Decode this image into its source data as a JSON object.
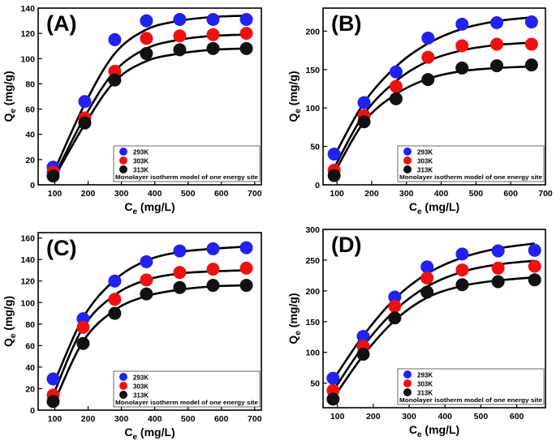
{
  "figure": {
    "series_names": [
      "293K",
      "303K",
      "313K"
    ],
    "series_colors": [
      "#2222ee",
      "#ee1111",
      "#111111"
    ],
    "model_label": "Monolayer isotherm model of one energy site",
    "x_label_main": "C",
    "x_label_sub": "e",
    "x_label_unit": " (mg/L)",
    "y_label_main": "Q",
    "y_label_sub": "e",
    "y_label_unit": " (mg/g)"
  },
  "chart_data": [
    {
      "type": "scatter",
      "panel_label": "(A)",
      "xlim": [
        50,
        720
      ],
      "ylim": [
        0,
        140
      ],
      "xticks": [
        100,
        200,
        300,
        400,
        500,
        600,
        700
      ],
      "yticks": [
        0,
        20,
        40,
        60,
        80,
        100,
        120,
        140
      ],
      "legend": "bottom-right",
      "series": [
        {
          "name": "293K",
          "x": [
            95,
            190,
            280,
            375,
            475,
            575,
            675
          ],
          "y": [
            14,
            66,
            115,
            130,
            131,
            131,
            131
          ],
          "fit": [
            [
              95,
              9
            ],
            [
              190,
              64
            ],
            [
              280,
              104
            ],
            [
              375,
              123
            ],
            [
              475,
              130
            ],
            [
              575,
              133
            ],
            [
              675,
              134
            ]
          ]
        },
        {
          "name": "303K",
          "x": [
            95,
            190,
            280,
            375,
            475,
            575,
            675
          ],
          "y": [
            10,
            53,
            90,
            116,
            118,
            119,
            120
          ],
          "fit": [
            [
              95,
              5
            ],
            [
              190,
              54
            ],
            [
              280,
              90
            ],
            [
              375,
              108
            ],
            [
              475,
              115
            ],
            [
              575,
              118
            ],
            [
              675,
              119
            ]
          ]
        },
        {
          "name": "313K",
          "x": [
            95,
            190,
            280,
            375,
            475,
            575,
            675
          ],
          "y": [
            7,
            49,
            83,
            104,
            107,
            108,
            108
          ],
          "fit": [
            [
              95,
              4
            ],
            [
              190,
              48
            ],
            [
              280,
              82
            ],
            [
              375,
              98
            ],
            [
              475,
              104
            ],
            [
              575,
              107
            ],
            [
              675,
              108
            ]
          ]
        }
      ]
    },
    {
      "type": "scatter",
      "panel_label": "(B)",
      "xlim": [
        60,
        700
      ],
      "ylim": [
        0,
        230
      ],
      "xticks": [
        100,
        200,
        300,
        400,
        500,
        600,
        700
      ],
      "yticks": [
        0,
        50,
        100,
        150,
        200
      ],
      "legend": "bottom-right",
      "series": [
        {
          "name": "293K",
          "x": [
            92,
            178,
            270,
            362,
            460,
            560,
            660
          ],
          "y": [
            40,
            107,
            147,
            191,
            209,
            211,
            212
          ],
          "fit": [
            [
              92,
              37
            ],
            [
              178,
              107
            ],
            [
              270,
              154
            ],
            [
              362,
              184
            ],
            [
              460,
              203
            ],
            [
              560,
              213
            ],
            [
              660,
              218
            ]
          ]
        },
        {
          "name": "303K",
          "x": [
            92,
            178,
            270,
            362,
            460,
            560,
            660
          ],
          "y": [
            19,
            90,
            128,
            166,
            181,
            183,
            183
          ],
          "fit": [
            [
              92,
              22
            ],
            [
              178,
              92
            ],
            [
              270,
              135
            ],
            [
              362,
              161
            ],
            [
              460,
              175
            ],
            [
              560,
              182
            ],
            [
              660,
              185
            ]
          ]
        },
        {
          "name": "313K",
          "x": [
            92,
            178,
            270,
            362,
            460,
            560,
            660
          ],
          "y": [
            12,
            82,
            112,
            137,
            152,
            155,
            156
          ],
          "fit": [
            [
              92,
              15
            ],
            [
              178,
              82
            ],
            [
              270,
              118
            ],
            [
              362,
              138
            ],
            [
              460,
              148
            ],
            [
              560,
              152
            ],
            [
              660,
              154
            ]
          ]
        }
      ]
    },
    {
      "type": "scatter",
      "panel_label": "(C)",
      "xlim": [
        50,
        720
      ],
      "ylim": [
        0,
        165
      ],
      "xticks": [
        100,
        200,
        300,
        400,
        500,
        600,
        700
      ],
      "yticks": [
        0,
        20,
        40,
        60,
        80,
        100,
        120,
        140,
        160
      ],
      "legend": "bottom-right",
      "series": [
        {
          "name": "293K",
          "x": [
            95,
            185,
            280,
            375,
            475,
            575,
            675
          ],
          "y": [
            29,
            85,
            120,
            138,
            148,
            150,
            151
          ],
          "fit": [
            [
              95,
              23
            ],
            [
              185,
              86
            ],
            [
              280,
              121
            ],
            [
              375,
              139
            ],
            [
              475,
              147
            ],
            [
              575,
              150
            ],
            [
              675,
              152
            ]
          ]
        },
        {
          "name": "303K",
          "x": [
            95,
            185,
            280,
            375,
            475,
            575,
            675
          ],
          "y": [
            14,
            77,
            103,
            121,
            128,
            131,
            132
          ],
          "fit": [
            [
              95,
              14
            ],
            [
              185,
              77
            ],
            [
              280,
              107
            ],
            [
              375,
              121
            ],
            [
              475,
              127
            ],
            [
              575,
              129
            ],
            [
              675,
              130
            ]
          ]
        },
        {
          "name": "313K",
          "x": [
            95,
            185,
            280,
            375,
            475,
            575,
            675
          ],
          "y": [
            8,
            62,
            90,
            108,
            114,
            116,
            116
          ],
          "fit": [
            [
              95,
              5
            ],
            [
              185,
              64
            ],
            [
              280,
              93
            ],
            [
              375,
              106
            ],
            [
              475,
              112
            ],
            [
              575,
              115
            ],
            [
              675,
              116
            ]
          ]
        }
      ]
    },
    {
      "type": "scatter",
      "panel_label": "(D)",
      "xlim": [
        60,
        680
      ],
      "ylim": [
        10,
        300
      ],
      "xticks": [
        100,
        200,
        300,
        400,
        500,
        600
      ],
      "yticks": [
        50,
        100,
        150,
        200,
        250,
        300
      ],
      "legend": "bottom-right",
      "series": [
        {
          "name": "293K",
          "x": [
            88,
            172,
            260,
            350,
            448,
            548,
            650
          ],
          "y": [
            58,
            126,
            190,
            239,
            260,
            265,
            266
          ],
          "fit": [
            [
              88,
              55
            ],
            [
              172,
              127
            ],
            [
              260,
              187
            ],
            [
              350,
              228
            ],
            [
              448,
              254
            ],
            [
              548,
              269
            ],
            [
              650,
              277
            ]
          ]
        },
        {
          "name": "303K",
          "x": [
            88,
            172,
            260,
            350,
            448,
            548,
            650
          ],
          "y": [
            38,
            110,
            175,
            221,
            234,
            237,
            240
          ],
          "fit": [
            [
              88,
              37
            ],
            [
              172,
              110
            ],
            [
              260,
              168
            ],
            [
              350,
              207
            ],
            [
              448,
              231
            ],
            [
              548,
              243
            ],
            [
              650,
              249
            ]
          ]
        },
        {
          "name": "313K",
          "x": [
            88,
            172,
            260,
            350,
            448,
            548,
            650
          ],
          "y": [
            24,
            97,
            156,
            198,
            210,
            215,
            218
          ],
          "fit": [
            [
              88,
              25
            ],
            [
              172,
              95
            ],
            [
              260,
              152
            ],
            [
              350,
              189
            ],
            [
              448,
              208
            ],
            [
              548,
              217
            ],
            [
              650,
              222
            ]
          ]
        }
      ]
    }
  ]
}
